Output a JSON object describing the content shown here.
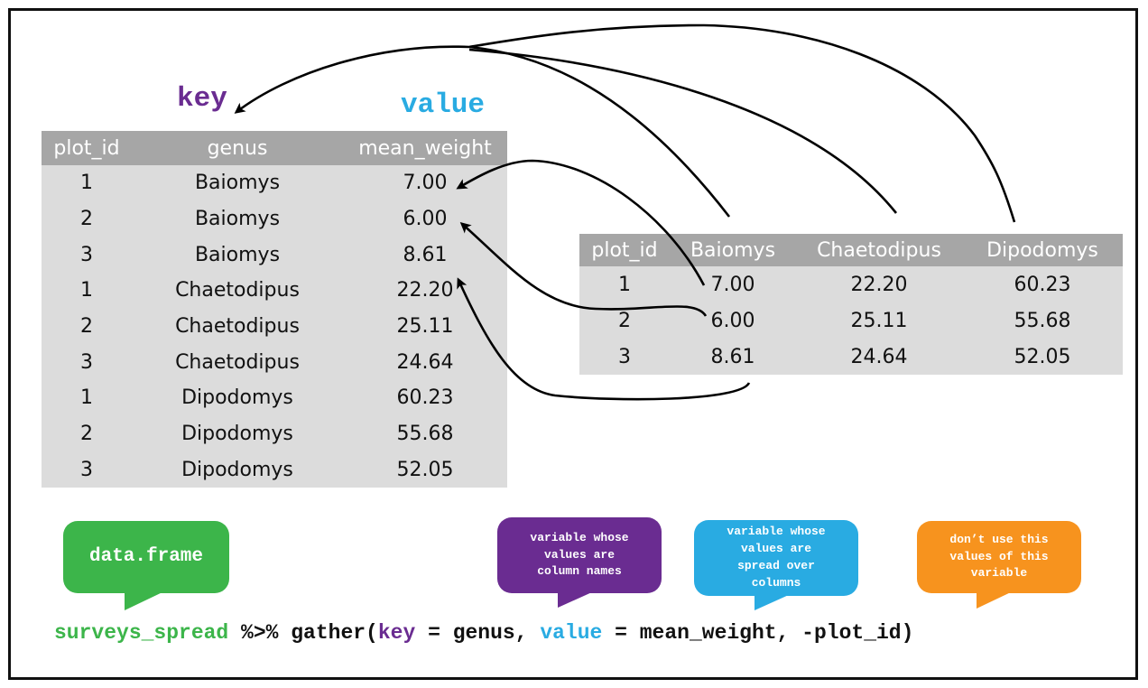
{
  "labels": {
    "key": "key",
    "value": "value"
  },
  "long_table": {
    "headers": [
      "plot_id",
      "genus",
      "mean_weight"
    ],
    "rows": [
      [
        "1",
        "Baiomys",
        "7.00"
      ],
      [
        "2",
        "Baiomys",
        "6.00"
      ],
      [
        "3",
        "Baiomys",
        "8.61"
      ],
      [
        "1",
        "Chaetodipus",
        "22.20"
      ],
      [
        "2",
        "Chaetodipus",
        "25.11"
      ],
      [
        "3",
        "Chaetodipus",
        "24.64"
      ],
      [
        "1",
        "Dipodomys",
        "60.23"
      ],
      [
        "2",
        "Dipodomys",
        "55.68"
      ],
      [
        "3",
        "Dipodomys",
        "52.05"
      ]
    ]
  },
  "wide_table": {
    "headers": [
      "plot_id",
      "Baiomys",
      "Chaetodipus",
      "Dipodomys"
    ],
    "rows": [
      [
        "1",
        "7.00",
        "22.20",
        "60.23"
      ],
      [
        "2",
        "6.00",
        "25.11",
        "55.68"
      ],
      [
        "3",
        "8.61",
        "24.64",
        "52.05"
      ]
    ]
  },
  "bubbles": {
    "data_frame": "data.frame",
    "key_desc": [
      "variable whose",
      "values are",
      "column names"
    ],
    "value_desc": [
      "variable whose",
      "values are",
      "spread over",
      "columns"
    ],
    "ignore_desc": [
      "don’t use this",
      "values of this",
      "variable"
    ]
  },
  "code": {
    "part1": "surveys_spread",
    "part2": " %>% gather(",
    "part3": "key",
    "part4": " = genus, ",
    "part5": "value",
    "part6": " = mean_weight, -plot_id)"
  },
  "colors": {
    "purple": "#6a2c91",
    "blue": "#29abe2",
    "green": "#3cb54a",
    "orange": "#f7931e",
    "table_header": "#a6a6a6",
    "table_body": "#dcdcdc"
  }
}
